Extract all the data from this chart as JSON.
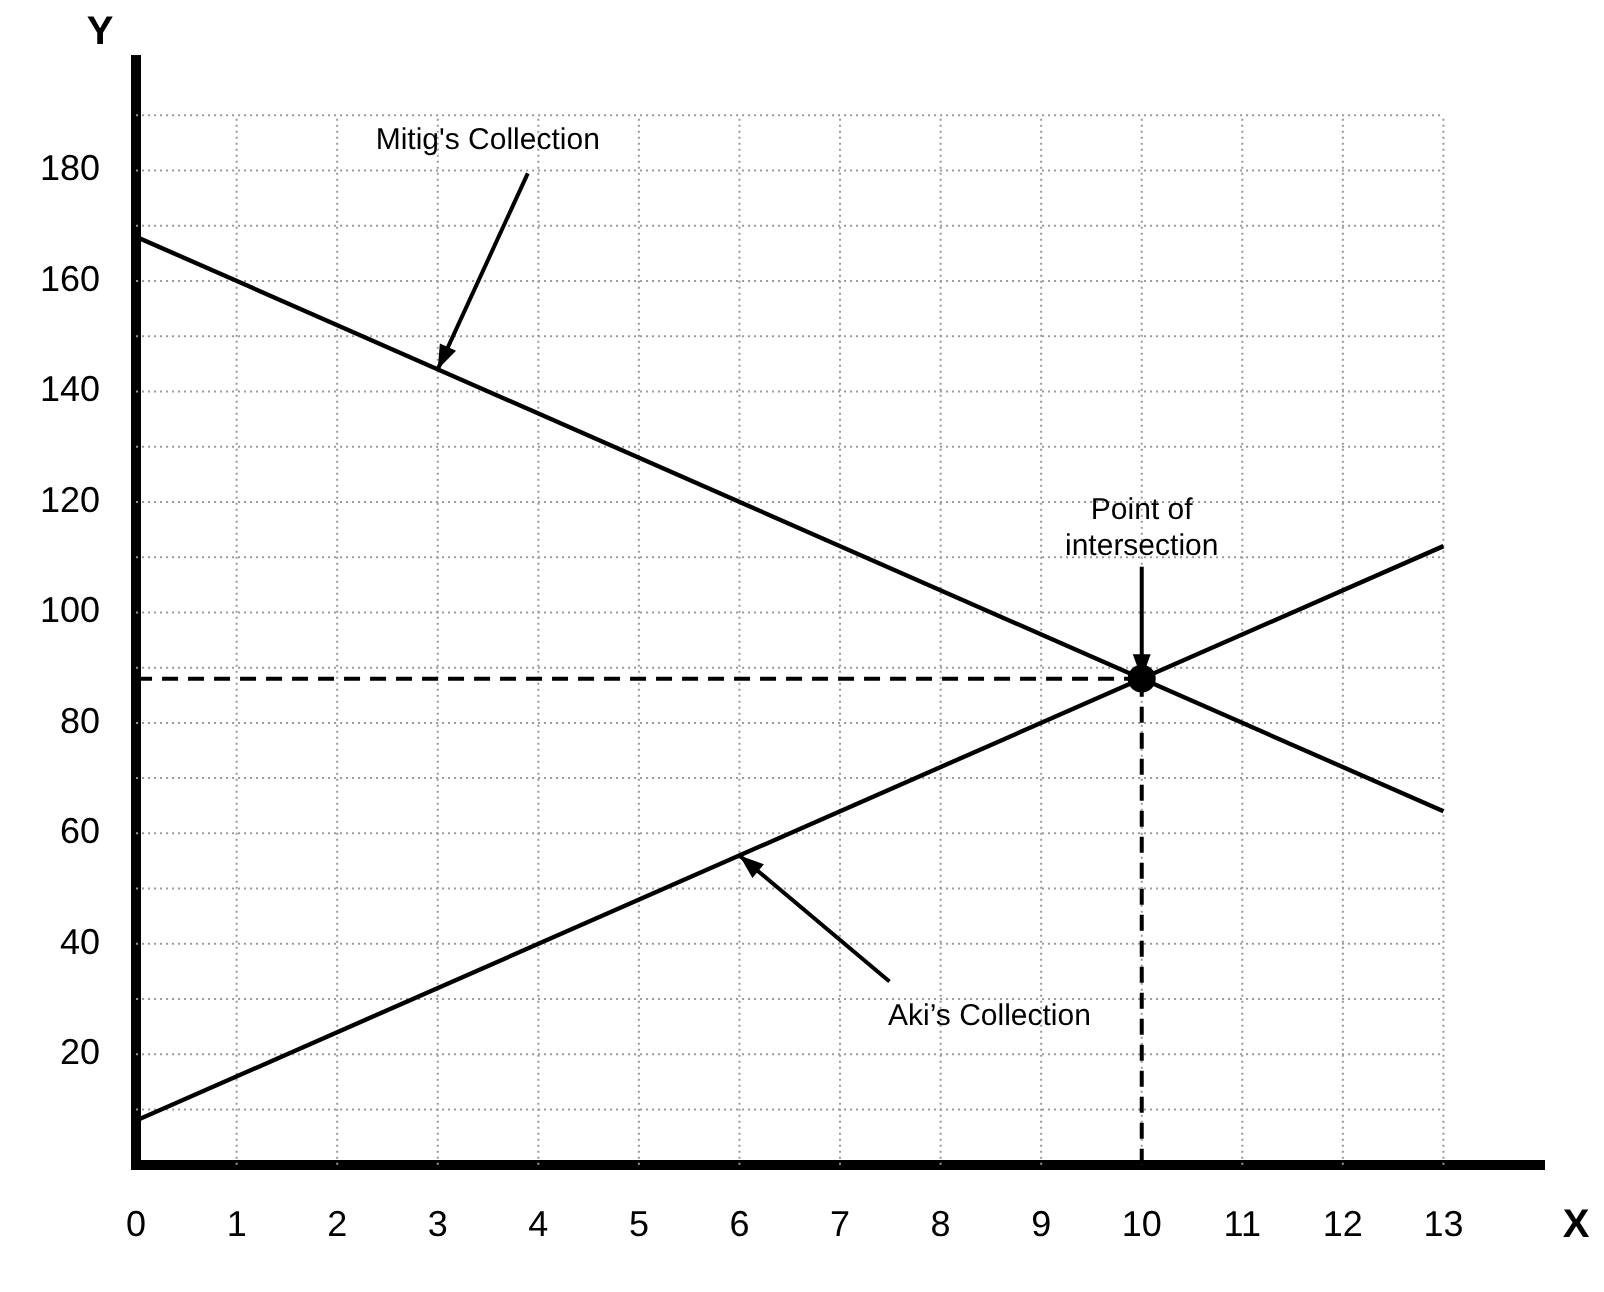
{
  "chart_data": {
    "type": "line",
    "xlabel": "X",
    "ylabel": "Y",
    "series": [
      {
        "x": [
          0,
          13
        ],
        "values": [
          168,
          64
        ],
        "color": "#000000",
        "marker": "none"
      },
      {
        "x": [
          0,
          13
        ],
        "values": [
          8,
          112
        ],
        "color": "#000000",
        "marker": "none"
      },
      {
        "type": "scatter",
        "x": [
          10
        ],
        "values": [
          88
        ],
        "color": "#000000",
        "marker": "circle"
      }
    ],
    "xlim": [
      0,
      14
    ],
    "xticks": [
      0,
      1,
      2,
      3,
      4,
      5,
      6,
      7,
      8,
      9,
      10,
      11,
      12,
      13
    ],
    "ylim": [
      0,
      200
    ],
    "yticks": [
      {
        "value": 10,
        "label": null
      },
      20,
      {
        "value": 30,
        "label": null
      },
      40,
      {
        "value": 50,
        "label": null
      },
      60,
      {
        "value": 70,
        "label": null
      },
      80,
      {
        "value": 90,
        "label": null
      },
      100,
      {
        "value": 110,
        "label": null
      },
      120,
      {
        "value": 130,
        "label": null
      },
      140,
      {
        "value": 150,
        "label": null
      },
      160,
      {
        "value": 170,
        "label": null
      },
      180,
      {
        "value": 190,
        "label": null
      }
    ],
    "grid": true,
    "legend": false,
    "ref_lines": [
      {
        "axis": "y",
        "value": 88,
        "line_style": "dashed",
        "color": "#000000"
      },
      {
        "axis": "x",
        "value": 10,
        "line_style": "dashed",
        "color": "#000000"
      }
    ],
    "annotations": [
      {
        "text": "Mitig's Collection",
        "x": 3,
        "y": 144
      },
      {
        "text": "Aki’s Collection",
        "x": 6,
        "y": 56
      },
      {
        "text": "Point of intersection",
        "x": 10,
        "y": 88
      }
    ]
  }
}
